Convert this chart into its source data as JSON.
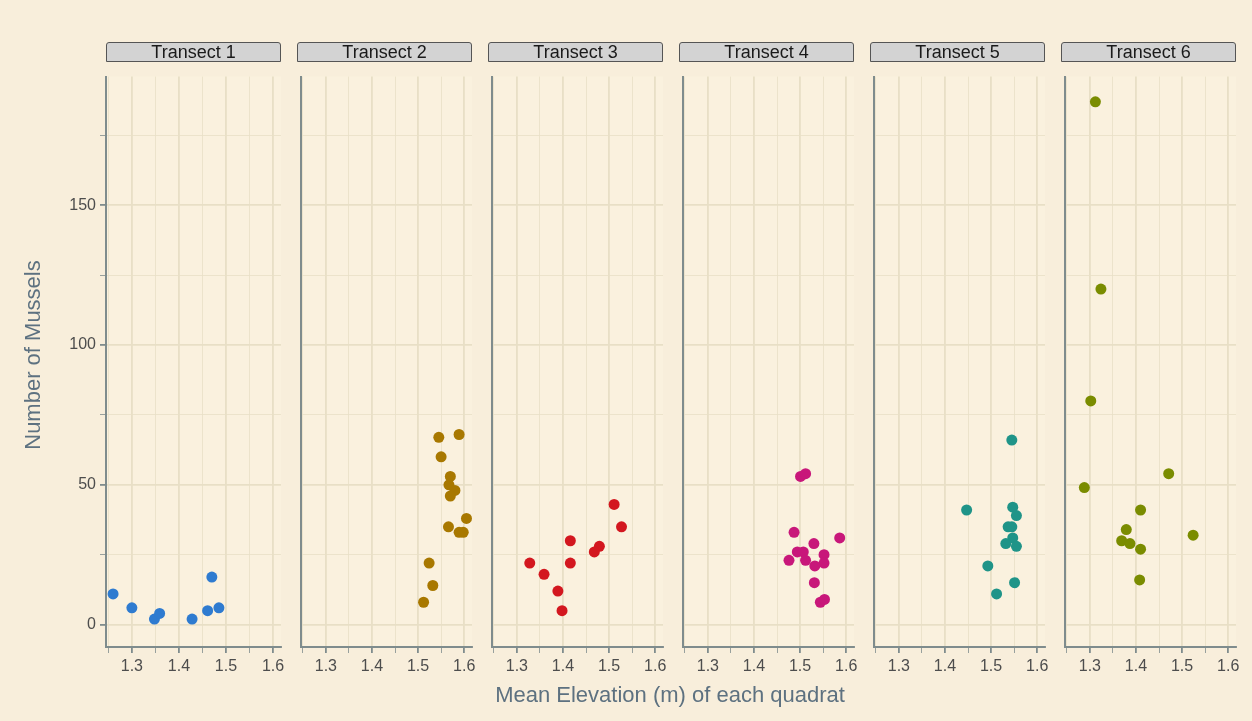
{
  "chart_data": [
    {
      "type": "scatter",
      "title": "Transect 1",
      "ylabel": "Number of Mussels",
      "color": "#2e7bd0",
      "x": [
        1.26,
        1.3,
        1.348,
        1.359,
        1.428,
        1.461,
        1.47,
        1.485
      ],
      "values": [
        11,
        6,
        2,
        4,
        2,
        5,
        17,
        6
      ],
      "xlim": [
        1.245,
        1.617
      ],
      "xticks": [
        {
          "value": 1.25,
          "label": null
        },
        1.3,
        {
          "value": 1.35,
          "label": null
        },
        1.4,
        {
          "value": 1.45,
          "label": null
        },
        1.5,
        {
          "value": 1.55,
          "label": null
        },
        1.6
      ],
      "ylim": [
        -8,
        196
      ],
      "yticks": [
        0,
        {
          "value": 25,
          "label": null
        },
        50,
        {
          "value": 75,
          "label": null
        },
        100,
        {
          "value": 125,
          "label": null
        },
        150,
        {
          "value": 175,
          "label": null
        }
      ],
      "grid": true,
      "marker": "circle"
    },
    {
      "type": "scatter",
      "title": "Transect 2",
      "color": "#a87800",
      "x": [
        1.545,
        1.589,
        1.55,
        1.57,
        1.567,
        1.58,
        1.57,
        1.605,
        1.566,
        1.589,
        1.598,
        1.524,
        1.532,
        1.512
      ],
      "values": [
        67,
        68,
        60,
        53,
        50,
        48,
        46,
        38,
        35,
        33,
        33,
        22,
        14,
        8
      ],
      "xlim": [
        1.245,
        1.617
      ],
      "xticks": [
        {
          "value": 1.25,
          "label": null
        },
        1.3,
        {
          "value": 1.35,
          "label": null
        },
        1.4,
        {
          "value": 1.45,
          "label": null
        },
        1.5,
        {
          "value": 1.55,
          "label": null
        },
        1.6
      ],
      "ylim": [
        -8,
        196
      ],
      "yticks": [
        0,
        {
          "value": 25,
          "label": null
        },
        50,
        {
          "value": 75,
          "label": null
        },
        100,
        {
          "value": 125,
          "label": null
        },
        150,
        {
          "value": 175,
          "label": null
        }
      ],
      "grid": true,
      "marker": "circle",
      "tick_labels": "x"
    },
    {
      "type": "scatter",
      "title": "Transect 3",
      "xlabel": "Mean Elevation (m) of each quadrat",
      "color": "#d3171f",
      "x": [
        1.511,
        1.527,
        1.416,
        1.479,
        1.468,
        1.328,
        1.416,
        1.359,
        1.389,
        1.398
      ],
      "values": [
        43,
        35,
        30,
        28,
        26,
        22,
        22,
        18,
        12,
        5
      ],
      "xlim": [
        1.245,
        1.617
      ],
      "xticks": [
        {
          "value": 1.25,
          "label": null
        },
        1.3,
        {
          "value": 1.35,
          "label": null
        },
        1.4,
        {
          "value": 1.45,
          "label": null
        },
        1.5,
        {
          "value": 1.55,
          "label": null
        },
        1.6
      ],
      "ylim": [
        -8,
        196
      ],
      "yticks": [
        0,
        {
          "value": 25,
          "label": null
        },
        50,
        {
          "value": 75,
          "label": null
        },
        100,
        {
          "value": 125,
          "label": null
        },
        150,
        {
          "value": 175,
          "label": null
        }
      ],
      "grid": true,
      "marker": "circle",
      "tick_labels": "x"
    },
    {
      "type": "scatter",
      "title": "Transect 4",
      "color": "#c8177a",
      "x": [
        1.501,
        1.512,
        1.487,
        1.586,
        1.53,
        1.494,
        1.507,
        1.552,
        1.476,
        1.512,
        1.552,
        1.532,
        1.531,
        1.544,
        1.553
      ],
      "values": [
        53,
        54,
        33,
        31,
        29,
        26,
        26,
        25,
        23,
        23,
        22,
        21,
        15,
        8,
        9
      ],
      "xlim": [
        1.245,
        1.617
      ],
      "xticks": [
        {
          "value": 1.25,
          "label": null
        },
        1.3,
        {
          "value": 1.35,
          "label": null
        },
        1.4,
        {
          "value": 1.45,
          "label": null
        },
        1.5,
        {
          "value": 1.55,
          "label": null
        },
        1.6
      ],
      "ylim": [
        -8,
        196
      ],
      "yticks": [
        0,
        {
          "value": 25,
          "label": null
        },
        50,
        {
          "value": 75,
          "label": null
        },
        100,
        {
          "value": 125,
          "label": null
        },
        150,
        {
          "value": 175,
          "label": null
        }
      ],
      "grid": true,
      "marker": "circle",
      "tick_labels": "x"
    },
    {
      "type": "scatter",
      "title": "Transect 5",
      "color": "#1f9488",
      "x": [
        1.545,
        1.447,
        1.547,
        1.555,
        1.537,
        1.545,
        1.547,
        1.532,
        1.555,
        1.493,
        1.551,
        1.512
      ],
      "values": [
        66,
        41,
        42,
        39,
        35,
        35,
        31,
        29,
        28,
        21,
        15,
        11
      ],
      "xlim": [
        1.245,
        1.617
      ],
      "xticks": [
        {
          "value": 1.25,
          "label": null
        },
        1.3,
        {
          "value": 1.35,
          "label": null
        },
        1.4,
        {
          "value": 1.45,
          "label": null
        },
        1.5,
        {
          "value": 1.55,
          "label": null
        },
        1.6
      ],
      "ylim": [
        -8,
        196
      ],
      "yticks": [
        0,
        {
          "value": 25,
          "label": null
        },
        50,
        {
          "value": 75,
          "label": null
        },
        100,
        {
          "value": 125,
          "label": null
        },
        150,
        {
          "value": 175,
          "label": null
        }
      ],
      "grid": true,
      "marker": "circle",
      "tick_labels": "x"
    },
    {
      "type": "scatter",
      "title": "Transect 6",
      "color": "#7a8c00",
      "x": [
        1.312,
        1.324,
        1.302,
        1.471,
        1.288,
        1.41,
        1.379,
        1.524,
        1.369,
        1.387,
        1.41,
        1.408
      ],
      "values": [
        187,
        120,
        80,
        54,
        49,
        41,
        34,
        32,
        30,
        29,
        27,
        16
      ],
      "xlim": [
        1.245,
        1.617
      ],
      "xticks": [
        {
          "value": 1.25,
          "label": null
        },
        1.3,
        {
          "value": 1.35,
          "label": null
        },
        1.4,
        {
          "value": 1.45,
          "label": null
        },
        1.5,
        {
          "value": 1.55,
          "label": null
        },
        1.6
      ],
      "ylim": [
        -8,
        196
      ],
      "yticks": [
        0,
        {
          "value": 25,
          "label": null
        },
        50,
        {
          "value": 75,
          "label": null
        },
        100,
        {
          "value": 125,
          "label": null
        },
        150,
        {
          "value": 175,
          "label": null
        }
      ],
      "grid": true,
      "marker": "circle",
      "tick_labels": "x"
    }
  ]
}
